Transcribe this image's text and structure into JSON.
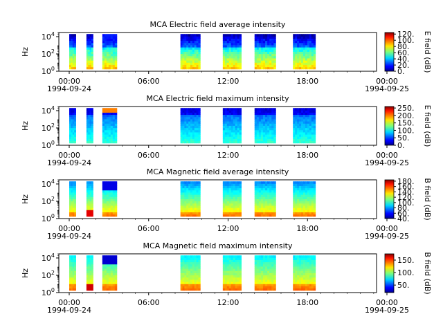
{
  "chart_data": [
    {
      "type": "heatmap",
      "title": "MCA  Electric field average intensity",
      "ylabel": "Hz",
      "y_scale": "log",
      "ylim": [
        1,
        30000
      ],
      "y_ticks": [
        "10^0",
        "10^2",
        "10^4"
      ],
      "x_ticks": [
        "00:00",
        "06:00",
        "12:00",
        "18:00",
        "00:00"
      ],
      "x_dates": [
        "1994-09-24",
        "1994-09-25"
      ],
      "xlim_hours": [
        0,
        24
      ],
      "colorbar": {
        "label": "E field (dB)",
        "range": [
          0,
          125
        ],
        "ticks": [
          "120.",
          "100.",
          "80.",
          "60.",
          "40.",
          "20.",
          "0."
        ],
        "colormap": "jet"
      },
      "data_intervals_hours": [
        [
          0.0,
          0.5
        ],
        [
          1.3,
          1.8
        ],
        [
          2.5,
          3.6
        ],
        [
          8.4,
          9.9
        ],
        [
          11.6,
          13.0
        ],
        [
          14.0,
          15.6
        ],
        [
          16.9,
          18.6
        ]
      ]
    },
    {
      "type": "heatmap",
      "title": "MCA  Electric field maximum intensity",
      "ylabel": "Hz",
      "y_scale": "log",
      "ylim": [
        1,
        30000
      ],
      "y_ticks": [
        "10^0",
        "10^2",
        "10^4"
      ],
      "x_ticks": [
        "00:00",
        "06:00",
        "12:00",
        "18:00",
        "00:00"
      ],
      "x_dates": [
        "1994-09-24",
        "1994-09-25"
      ],
      "xlim_hours": [
        0,
        24
      ],
      "colorbar": {
        "label": "E field (dB)",
        "range": [
          0,
          260
        ],
        "ticks": [
          "250.",
          "200.",
          "150.",
          "100.",
          "50.",
          "0."
        ],
        "colormap": "jet"
      },
      "data_intervals_hours": [
        [
          0.0,
          0.5
        ],
        [
          1.3,
          1.8
        ],
        [
          2.5,
          3.6
        ],
        [
          8.4,
          9.9
        ],
        [
          11.6,
          13.0
        ],
        [
          14.0,
          15.6
        ],
        [
          16.9,
          18.6
        ]
      ]
    },
    {
      "type": "heatmap",
      "title": "MCA  Magnetic field average intensity",
      "ylabel": "Hz",
      "y_scale": "log",
      "ylim": [
        1,
        30000
      ],
      "y_ticks": [
        "10^0",
        "10^2",
        "10^4"
      ],
      "x_ticks": [
        "00:00",
        "06:00",
        "12:00",
        "18:00",
        "00:00"
      ],
      "x_dates": [
        "1994-09-24",
        "1994-09-25"
      ],
      "xlim_hours": [
        0,
        24
      ],
      "colorbar": {
        "label": "B field (dB)",
        "range": [
          40,
          185
        ],
        "ticks": [
          "180.",
          "160.",
          "140.",
          "120.",
          "100.",
          "80.",
          "60.",
          "40."
        ],
        "colormap": "jet"
      },
      "data_intervals_hours": [
        [
          0.0,
          0.5
        ],
        [
          1.3,
          1.8
        ],
        [
          2.5,
          3.6
        ],
        [
          8.4,
          9.9
        ],
        [
          11.6,
          13.0
        ],
        [
          14.0,
          15.6
        ],
        [
          16.9,
          18.6
        ]
      ]
    },
    {
      "type": "heatmap",
      "title": "MCA  Magnetic field maximum intensity",
      "ylabel": "Hz",
      "y_scale": "log",
      "ylim": [
        1,
        30000
      ],
      "y_ticks": [
        "10^0",
        "10^2",
        "10^4"
      ],
      "x_ticks": [
        "00:00",
        "06:00",
        "12:00",
        "18:00",
        "00:00"
      ],
      "x_dates": [
        "1994-09-24",
        "1994-09-25"
      ],
      "xlim_hours": [
        0,
        24
      ],
      "colorbar": {
        "label": "B field (dB)",
        "range": [
          20,
          175
        ],
        "ticks": [
          "150.",
          "100.",
          "50."
        ],
        "colormap": "jet"
      },
      "data_intervals_hours": [
        [
          0.0,
          0.5
        ],
        [
          1.3,
          1.8
        ],
        [
          2.5,
          3.6
        ],
        [
          8.4,
          9.9
        ],
        [
          11.6,
          13.0
        ],
        [
          14.0,
          15.6
        ],
        [
          16.9,
          18.6
        ]
      ]
    }
  ]
}
